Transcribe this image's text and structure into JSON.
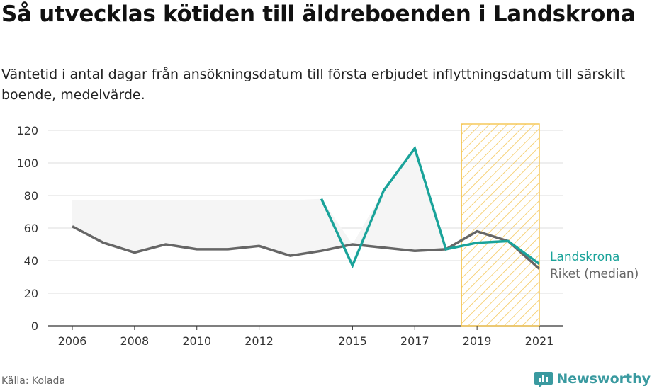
{
  "title": "Så utvecklas kötiden till äldreboenden i Landskrona",
  "subtitle": "Väntetid i antal dagar från ansökningsdatum till första erbjudet inflyttningsdatum till särskilt boende, medelvärde.",
  "source": "Källa: Kolada",
  "brand": {
    "name": "Newsworthy",
    "icon": "newsworthy-logo-icon"
  },
  "colors": {
    "landskrona": "#1aa39a",
    "riket": "#666666",
    "highlight_stroke": "#f5c85a",
    "band_fill": "#f5f5f5",
    "grid": "#dddddd",
    "brand": "#3a9aa0"
  },
  "chart_data": {
    "type": "line",
    "x": [
      2006,
      2007,
      2008,
      2009,
      2010,
      2011,
      2012,
      2013,
      2014,
      2015,
      2016,
      2017,
      2018,
      2019,
      2020,
      2021
    ],
    "xticks": [
      "2006",
      "2008",
      "2010",
      "2012",
      "2015",
      "2017",
      "2019",
      "2021"
    ],
    "ylim": [
      0,
      120
    ],
    "yticks": [
      "0",
      "20",
      "40",
      "60",
      "80",
      "100",
      "120"
    ],
    "grid": true,
    "legend": "direct labels at line ends",
    "series": [
      {
        "name": "Landskrona",
        "color": "#1aa39a",
        "values": [
          null,
          null,
          null,
          null,
          null,
          null,
          null,
          null,
          78,
          37,
          83,
          109,
          47,
          51,
          52,
          38
        ]
      },
      {
        "name": "Riket (median)",
        "color": "#666666",
        "values": [
          61,
          51,
          45,
          50,
          47,
          47,
          49,
          43,
          46,
          50,
          48,
          46,
          47,
          58,
          52,
          35
        ]
      }
    ],
    "band": {
      "description": "shaded span between series",
      "x_range": [
        2006,
        2018
      ]
    },
    "highlight": {
      "x_range": [
        2018.5,
        2021
      ],
      "style": "hatched"
    }
  }
}
